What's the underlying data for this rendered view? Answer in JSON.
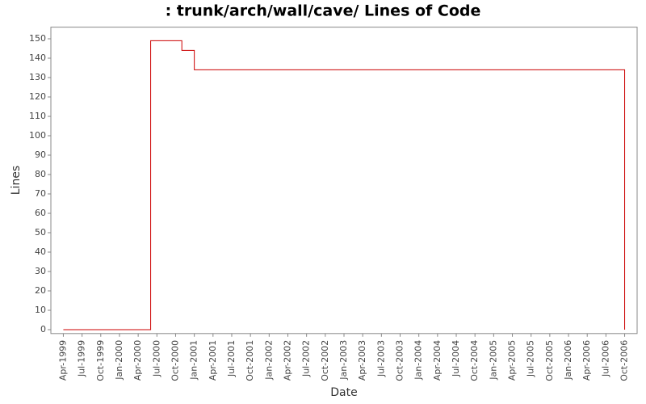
{
  "chart_data": {
    "type": "step",
    "title": ": trunk/arch/wall/cave/ Lines of Code",
    "x_label": "Date",
    "y_label": "Lines",
    "x": [
      "1999-04",
      "2000-06",
      "2000-11",
      "2001-01",
      "2006-10"
    ],
    "values": [
      0,
      149,
      144,
      134,
      0
    ],
    "color": "#cc0000",
    "xlim": [
      "1999-02",
      "2006-12"
    ],
    "xticks": [
      {
        "value": "1999-04",
        "label": "Apr-1999"
      },
      {
        "value": "1999-07",
        "label": "Jul-1999"
      },
      {
        "value": "1999-10",
        "label": "Oct-1999"
      },
      {
        "value": "2000-01",
        "label": "Jan-2000"
      },
      {
        "value": "2000-04",
        "label": "Apr-2000"
      },
      {
        "value": "2000-07",
        "label": "Jul-2000"
      },
      {
        "value": "2000-10",
        "label": "Oct-2000"
      },
      {
        "value": "2001-01",
        "label": "Jan-2001"
      },
      {
        "value": "2001-04",
        "label": "Apr-2001"
      },
      {
        "value": "2001-07",
        "label": "Jul-2001"
      },
      {
        "value": "2001-10",
        "label": "Oct-2001"
      },
      {
        "value": "2002-01",
        "label": "Jan-2002"
      },
      {
        "value": "2002-04",
        "label": "Apr-2002"
      },
      {
        "value": "2002-07",
        "label": "Jul-2002"
      },
      {
        "value": "2002-10",
        "label": "Oct-2002"
      },
      {
        "value": "2003-01",
        "label": "Jan-2003"
      },
      {
        "value": "2003-04",
        "label": "Apr-2003"
      },
      {
        "value": "2003-07",
        "label": "Jul-2003"
      },
      {
        "value": "2003-10",
        "label": "Oct-2003"
      },
      {
        "value": "2004-01",
        "label": "Jan-2004"
      },
      {
        "value": "2004-04",
        "label": "Apr-2004"
      },
      {
        "value": "2004-07",
        "label": "Jul-2004"
      },
      {
        "value": "2004-10",
        "label": "Oct-2004"
      },
      {
        "value": "2005-01",
        "label": "Jan-2005"
      },
      {
        "value": "2005-04",
        "label": "Apr-2005"
      },
      {
        "value": "2005-07",
        "label": "Jul-2005"
      },
      {
        "value": "2005-10",
        "label": "Oct-2005"
      },
      {
        "value": "2006-01",
        "label": "Jan-2006"
      },
      {
        "value": "2006-04",
        "label": "Apr-2006"
      },
      {
        "value": "2006-07",
        "label": "Jul-2006"
      },
      {
        "value": "2006-10",
        "label": "Oct-2006"
      }
    ],
    "ylim": [
      -2,
      156
    ],
    "yticks": [
      0,
      10,
      20,
      30,
      40,
      50,
      60,
      70,
      80,
      90,
      100,
      110,
      120,
      130,
      140,
      150
    ]
  }
}
